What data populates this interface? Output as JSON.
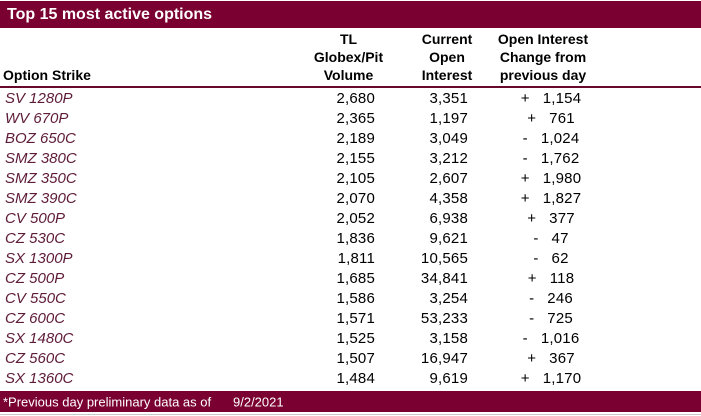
{
  "title_bar": {
    "title": "Top 15 most active options"
  },
  "table": {
    "headers": {
      "option_strike": "Option Strike",
      "volume": [
        "TL Globex/Pit",
        "Volume"
      ],
      "current_oi": [
        "Current",
        "Open",
        "Interest"
      ],
      "oi_change": [
        "Open Interest",
        "Change from",
        "previous day"
      ]
    },
    "rows": [
      {
        "strike": "SV 1280P",
        "volume": "2,680",
        "open_interest": "3,351",
        "change_sign": "+",
        "change_value": "1,154"
      },
      {
        "strike": "WV 670P",
        "volume": "2,365",
        "open_interest": "1,197",
        "change_sign": "+",
        "change_value": "761"
      },
      {
        "strike": "BOZ 650C",
        "volume": "2,189",
        "open_interest": "3,049",
        "change_sign": "-",
        "change_value": "1,024"
      },
      {
        "strike": "SMZ 380C",
        "volume": "2,155",
        "open_interest": "3,212",
        "change_sign": "-",
        "change_value": "1,762"
      },
      {
        "strike": "SMZ 350C",
        "volume": "2,105",
        "open_interest": "2,607",
        "change_sign": "+",
        "change_value": "1,980"
      },
      {
        "strike": "SMZ 390C",
        "volume": "2,070",
        "open_interest": "4,358",
        "change_sign": "+",
        "change_value": "1,827"
      },
      {
        "strike": "CV 500P",
        "volume": "2,052",
        "open_interest": "6,938",
        "change_sign": "+",
        "change_value": "377"
      },
      {
        "strike": "CZ 530C",
        "volume": "1,836",
        "open_interest": "9,621",
        "change_sign": "-",
        "change_value": "47"
      },
      {
        "strike": "SX 1300P",
        "volume": "1,811",
        "open_interest": "10,565",
        "change_sign": "-",
        "change_value": "62"
      },
      {
        "strike": "CZ 500P",
        "volume": "1,685",
        "open_interest": "34,841",
        "change_sign": "+",
        "change_value": "118"
      },
      {
        "strike": "CV 550C",
        "volume": "1,586",
        "open_interest": "3,254",
        "change_sign": "-",
        "change_value": "246"
      },
      {
        "strike": "CZ 600C",
        "volume": "1,571",
        "open_interest": "53,233",
        "change_sign": "-",
        "change_value": "725"
      },
      {
        "strike": "SX 1480C",
        "volume": "1,525",
        "open_interest": "3,158",
        "change_sign": "-",
        "change_value": "1,016"
      },
      {
        "strike": "CZ 560C",
        "volume": "1,507",
        "open_interest": "16,947",
        "change_sign": "+",
        "change_value": "367"
      },
      {
        "strike": "SX 1360C",
        "volume": "1,484",
        "open_interest": "9,619",
        "change_sign": "+",
        "change_value": "1,170"
      }
    ]
  },
  "footer": {
    "note": "*Previous day preliminary data as of",
    "date": "9/2/2021"
  },
  "colors": {
    "maroon": "#7a0031",
    "rule": "#68082a",
    "strike_text": "#5e1b38"
  }
}
